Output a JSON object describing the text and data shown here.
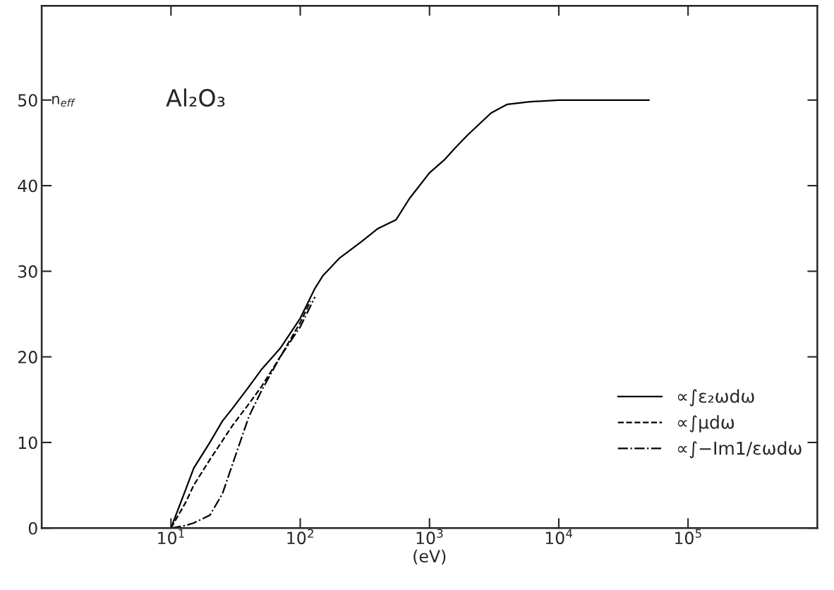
{
  "chart_data": {
    "type": "line",
    "ylabel": "n$_{eff}$",
    "xlabel": "(eV)",
    "annotations": [
      "Al₂O₃"
    ],
    "log": "x",
    "xlim": [
      1,
      1000000
    ],
    "ylim": [
      0,
      61
    ],
    "xticks": [
      {
        "value": 10,
        "label": "10$^{1}$"
      },
      {
        "value": 100,
        "label": "10$^{2}$"
      },
      {
        "value": 1000,
        "label": "10$^{3}$"
      },
      {
        "value": 10000,
        "label": "10$^{4}$"
      },
      {
        "value": 100000,
        "label": "10$^{5}$"
      }
    ],
    "yticks": [
      0,
      10,
      20,
      30,
      40,
      50
    ],
    "grid": false,
    "legend": "bottom right",
    "series": [
      {
        "name": "∝∫ε₂ωdω",
        "color": "#000000",
        "line_style": "solid",
        "x": [
          10,
          13,
          15,
          20,
          25,
          30,
          40,
          50,
          70,
          100,
          130,
          150,
          200,
          300,
          400,
          550,
          700,
          1000,
          1300,
          1600,
          2000,
          3000,
          4000,
          6000,
          10000,
          50000
        ],
        "values": [
          0,
          4.5,
          7,
          10,
          12.5,
          14,
          16.5,
          18.5,
          21,
          24.5,
          28,
          29.5,
          31.5,
          33.5,
          35,
          36,
          38.5,
          41.5,
          43,
          44.5,
          46,
          48.5,
          49.5,
          49.8,
          50,
          50
        ]
      },
      {
        "name": "∝∫μdω",
        "color": "#000000",
        "line_style": "dashed",
        "x": [
          10,
          13,
          15,
          20,
          30,
          40,
          50,
          70,
          100,
          120
        ],
        "values": [
          0,
          3,
          5,
          8,
          12,
          14.5,
          16.5,
          20,
          24,
          26.5
        ]
      },
      {
        "name": "∝∫−Im1/εωdω",
        "color": "#000000",
        "line_style": "dashdot",
        "x": [
          10,
          13,
          15,
          20,
          25,
          30,
          40,
          50,
          70,
          100,
          130
        ],
        "values": [
          0,
          0.3,
          0.6,
          1.5,
          4,
          7.5,
          13,
          16,
          20,
          23.5,
          27
        ]
      }
    ]
  }
}
